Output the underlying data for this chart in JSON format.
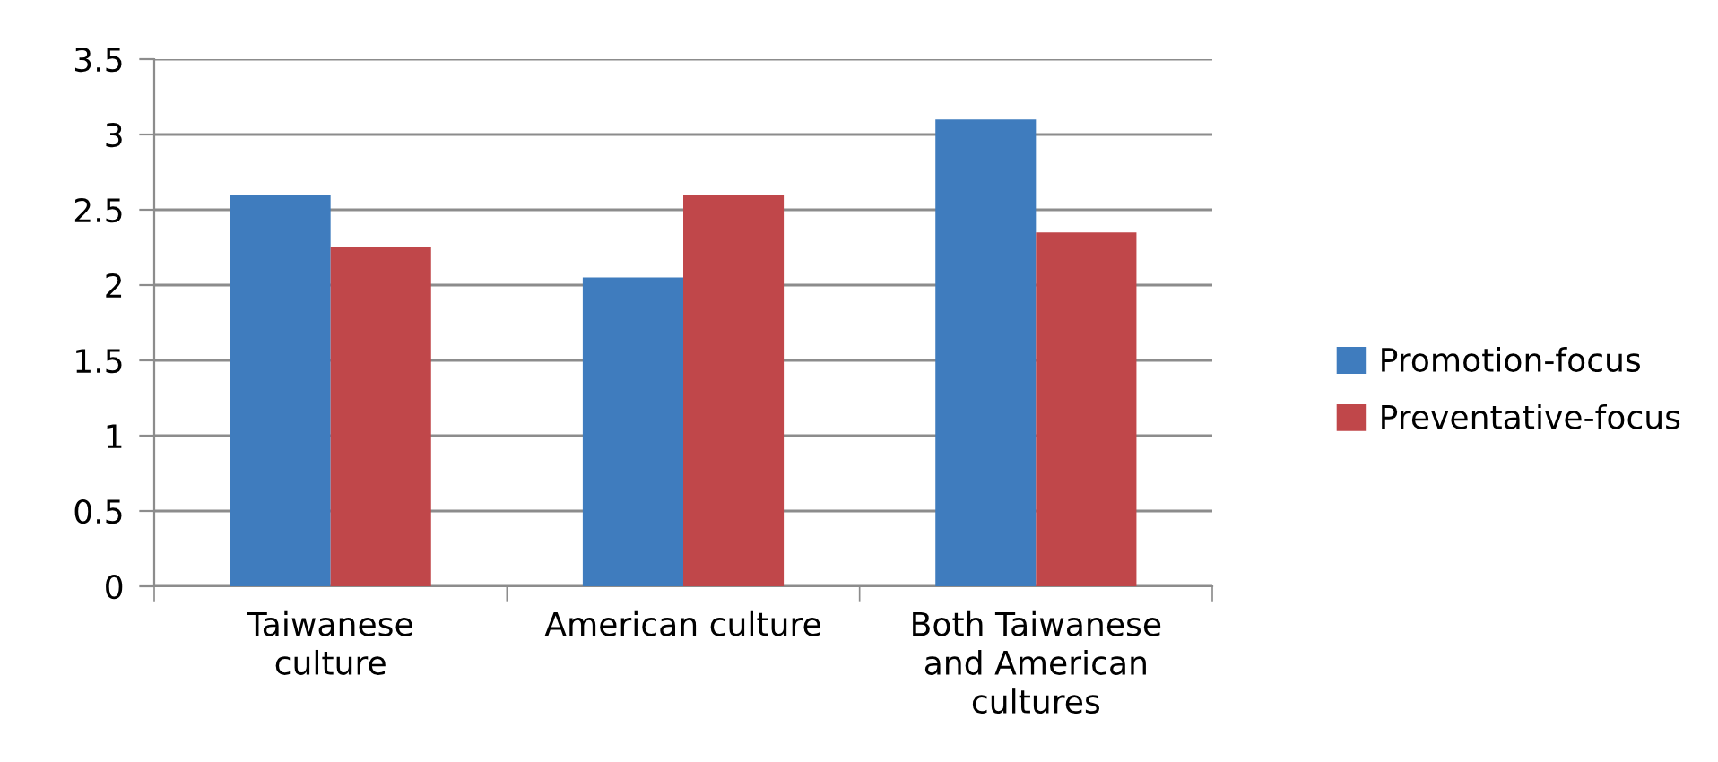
{
  "chart_data": {
    "type": "bar",
    "categories": [
      "Taiwanese culture",
      "American culture",
      "Both Taiwanese and American cultures"
    ],
    "series": [
      {
        "name": "Promotion-focus",
        "color": "#3f7cbe",
        "values": [
          2.6,
          2.05,
          3.1
        ]
      },
      {
        "name": "Preventative-focus",
        "color": "#c0474a",
        "values": [
          2.25,
          2.6,
          2.35
        ]
      }
    ],
    "ylim": [
      0,
      3.5
    ],
    "yticks": [
      0,
      0.5,
      1,
      1.5,
      2,
      2.5,
      3,
      3.5
    ],
    "grid": "y",
    "legend": "right"
  }
}
